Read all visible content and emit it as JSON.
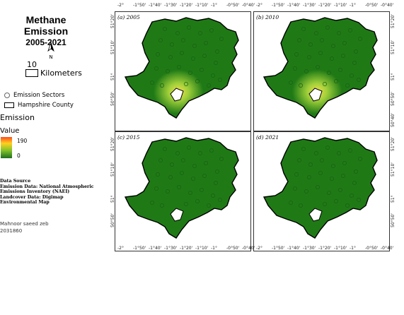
{
  "title": "Methane Emission",
  "subtitle": "2005-2021",
  "north_label": "N",
  "scale": {
    "value": "10",
    "unit": "Kilometers"
  },
  "legend": {
    "sectors_label": "Emission Sectors",
    "county_label": "Hampshire County",
    "emission_label": "Emission",
    "value_label": "Value",
    "max": "190",
    "min": "0"
  },
  "source": {
    "heading": "Data Source",
    "line1": "Emission Data: National Atmospheric",
    "line2": "Emissions Inventory (NAEI)",
    "line3": "Landcover Data: Digimap",
    "line4": "Environmental Map"
  },
  "author": {
    "name": "Mahnoor saeed zeb",
    "id": "2031860"
  },
  "panels": [
    {
      "label": "(a) 2005",
      "hotspot": true
    },
    {
      "label": "(b) 2010",
      "hotspot": true
    },
    {
      "label": "(c) 2015",
      "hotspot": false
    },
    {
      "label": "(d) 2021",
      "hotspot": false
    }
  ],
  "x_ticks": [
    "-2°",
    "-1°50'",
    "-1°40'",
    "-1°30'",
    "-1°20'",
    "-1°10'",
    "-1°",
    "-0°50'",
    "-0°40'"
  ],
  "y_ticks": [
    "51°20'",
    "51°10'",
    "51°",
    "50°50'"
  ],
  "y_tick_extra": "50°40'",
  "colors": {
    "shade": "#1f7a16",
    "dark": "#195f11",
    "hot": "#f2e04a",
    "warm": "#9fcf3a"
  }
}
